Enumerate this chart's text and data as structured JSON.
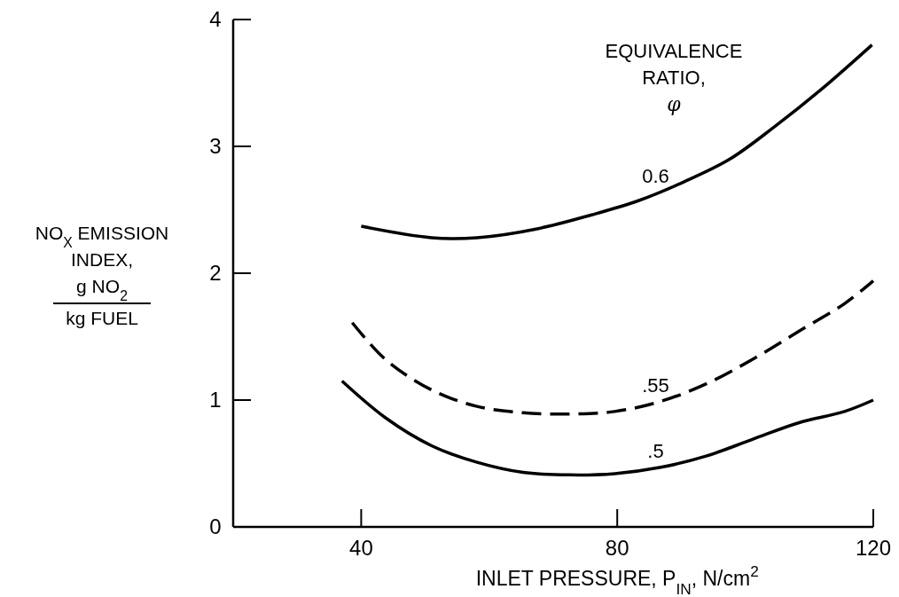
{
  "chart_data": {
    "type": "line",
    "xlabel": "INLET PRESSURE, P$_{IN}$, N/cm$^{2}$",
    "ylabel": "NO$_{X}$ EMISSION\nINDEX,\ng NO$_{2}$\nkg FUEL",
    "legend_title": "EQUIVALENCE\nRATIO,\nφ",
    "xlim": [
      20,
      120
    ],
    "xticks": [
      40,
      80,
      120
    ],
    "ylim": [
      0,
      4
    ],
    "yticks": [
      0,
      1,
      2,
      3,
      4
    ],
    "grid": false,
    "series": [
      {
        "name": "0.6",
        "color": "#000000",
        "line_style": "solid",
        "x": [
          40,
          51,
          58.1,
          67.5,
          76,
          83.2,
          90.4,
          97.6,
          104.7,
          111.9,
          119.8
        ],
        "values": [
          2.37,
          2.28,
          2.28,
          2.35,
          2.46,
          2.57,
          2.72,
          2.9,
          3.16,
          3.45,
          3.8
        ]
      },
      {
        "name": ".55",
        "color": "#000000",
        "line_style": "dashed",
        "x": [
          38.6,
          43.8,
          51,
          58.1,
          65.3,
          72.5,
          79.6,
          86.8,
          94,
          101.1,
          108.3,
          115.5,
          120
        ],
        "values": [
          1.61,
          1.32,
          1.08,
          0.95,
          0.9,
          0.89,
          0.91,
          0.99,
          1.13,
          1.32,
          1.54,
          1.76,
          1.94
        ]
      },
      {
        "name": ".5",
        "color": "#000000",
        "line_style": "solid",
        "x": [
          37,
          43.8,
          51,
          58.1,
          65.3,
          72.5,
          79.6,
          86.8,
          94,
          101.1,
          108.3,
          115.5,
          120
        ],
        "values": [
          1.15,
          0.86,
          0.64,
          0.51,
          0.43,
          0.41,
          0.42,
          0.47,
          0.56,
          0.69,
          0.82,
          0.91,
          1.0
        ]
      }
    ]
  }
}
